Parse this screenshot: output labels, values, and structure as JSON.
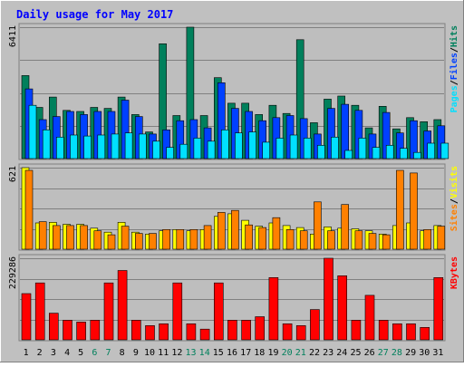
{
  "colors": {
    "background": "#C0C0C0",
    "plot_background": "#BEBEBE",
    "border_light": "#FFFFFF",
    "border_dark": "#808080",
    "title": "#0000FF",
    "axis": "#000000",
    "grid": "#808080",
    "hits": "#00805C",
    "files": "#0040FF",
    "pages": "#00E0FF",
    "visits": "#FFFF00",
    "sites": "#FF8000",
    "kbytes": "#FF0000",
    "day_weekday": "#000000",
    "day_weekend": "#00805C",
    "label_separator": "#000000"
  },
  "chart_data": {
    "type": "bar",
    "title": "Daily usage for May 2017",
    "categories": [
      "1",
      "2",
      "3",
      "4",
      "5",
      "6",
      "7",
      "8",
      "9",
      "10",
      "11",
      "12",
      "13",
      "14",
      "15",
      "16",
      "17",
      "18",
      "19",
      "20",
      "21",
      "22",
      "23",
      "24",
      "25",
      "26",
      "27",
      "28",
      "29",
      "30",
      "31"
    ],
    "weekend_days": [
      "6",
      "7",
      "13",
      "14",
      "20",
      "21",
      "27",
      "28"
    ],
    "panels": [
      {
        "id": "top",
        "max_label": "6411",
        "ymax": 6411,
        "right_labels": [
          {
            "text": "Pages",
            "color": "#00E0FF"
          },
          {
            "text": "/",
            "color": "#000000"
          },
          {
            "text": "Files",
            "color": "#0040FF"
          },
          {
            "text": "/",
            "color": "#000000"
          },
          {
            "text": "Hits",
            "color": "#00805C"
          }
        ],
        "series": [
          {
            "name": "Hits",
            "color": "#00805C",
            "values": [
              4050,
              2500,
              3000,
              2350,
              2300,
              2500,
              2450,
              3000,
              2150,
              1300,
              5600,
              2100,
              6411,
              2100,
              3950,
              2700,
              2700,
              2150,
              2600,
              2200,
              5800,
              1750,
              2900,
              3050,
              2600,
              1500,
              2550,
              1450,
              2000,
              1800,
              1900
            ]
          },
          {
            "name": "Files",
            "color": "#0040FF",
            "values": [
              3400,
              1900,
              2050,
              2300,
              2150,
              2300,
              2300,
              2850,
              2050,
              1200,
              1400,
              1850,
              1900,
              1500,
              3700,
              2450,
              2300,
              1850,
              2000,
              2100,
              1950,
              1200,
              2450,
              2650,
              2350,
              1200,
              2250,
              1250,
              1850,
              1350,
              1600
            ]
          },
          {
            "name": "Pages",
            "color": "#00E0FF",
            "values": [
              2600,
              1400,
              1050,
              1150,
              1100,
              1150,
              1200,
              1250,
              1200,
              850,
              550,
              700,
              1000,
              850,
              1400,
              1250,
              1300,
              800,
              1000,
              1150,
              1000,
              650,
              1050,
              400,
              1000,
              550,
              650,
              500,
              300,
              750,
              750
            ]
          }
        ]
      },
      {
        "id": "middle",
        "max_label": "621",
        "ymax": 621,
        "right_labels": [
          {
            "text": "Sites",
            "color": "#FF8000"
          },
          {
            "text": "/",
            "color": "#000000"
          },
          {
            "text": "Visits",
            "color": "#FFFF00"
          }
        ],
        "series": [
          {
            "name": "Visits",
            "color": "#FFFF00",
            "values": [
              621,
              200,
              205,
              190,
              190,
              160,
              130,
              205,
              130,
              115,
              140,
              150,
              140,
              150,
              250,
              270,
              220,
              175,
              200,
              180,
              165,
              115,
              170,
              160,
              155,
              140,
              115,
              180,
              200,
              140,
              180
            ]
          },
          {
            "name": "Sites",
            "color": "#FF8000",
            "values": [
              600,
              210,
              180,
              180,
              180,
              140,
              110,
              175,
              120,
              120,
              150,
              150,
              150,
              180,
              280,
              295,
              185,
              165,
              240,
              150,
              140,
              360,
              140,
              340,
              140,
              120,
              110,
              600,
              580,
              150,
              175
            ]
          }
        ]
      },
      {
        "id": "bottom",
        "max_label": "229286",
        "ymax": 229286,
        "right_labels": [
          {
            "text": "KBytes",
            "color": "#FF0000"
          }
        ],
        "series": [
          {
            "name": "KBytes",
            "color": "#FF0000",
            "values": [
              130000,
              160000,
              75000,
              55000,
              50000,
              55000,
              160000,
              195000,
              55000,
              40000,
              45000,
              160000,
              45000,
              30000,
              160000,
              55000,
              55000,
              65000,
              175000,
              45000,
              40000,
              85000,
              229286,
              180000,
              55000,
              125000,
              55000,
              45000,
              45000,
              35000,
              175000
            ]
          }
        ]
      }
    ]
  }
}
